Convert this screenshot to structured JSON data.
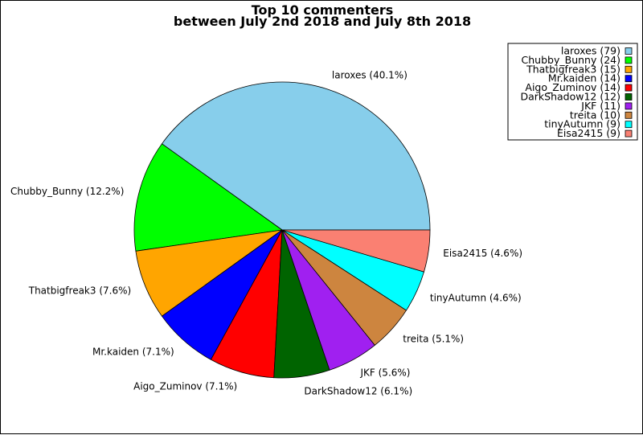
{
  "chart_data": {
    "type": "pie",
    "title": "Top 10 commenters",
    "subtitle": "between July 2nd 2018 and July 8th 2018",
    "legend_position": "top-right",
    "slices": [
      {
        "name": "laroxes",
        "value": 79,
        "label": "laroxes (40.1%)",
        "legend": "laroxes (79)",
        "color": "#87CEEB"
      },
      {
        "name": "Chubby_Bunny",
        "value": 24,
        "label": "Chubby_Bunny (12.2%)",
        "legend": "Chubby_Bunny (24)",
        "color": "#00FF00"
      },
      {
        "name": "Thatbigfreak3",
        "value": 15,
        "label": "Thatbigfreak3 (7.6%)",
        "legend": "Thatbigfreak3 (15)",
        "color": "#FFA500"
      },
      {
        "name": "Mr.kaiden",
        "value": 14,
        "label": "Mr.kaiden (7.1%)",
        "legend": "Mr.kaiden (14)",
        "color": "#0000FF"
      },
      {
        "name": "Aigo_Zuminov",
        "value": 14,
        "label": "Aigo_Zuminov (7.1%)",
        "legend": "Aigo_Zuminov (14)",
        "color": "#FF0000"
      },
      {
        "name": "DarkShadow12",
        "value": 12,
        "label": "DarkShadow12 (6.1%)",
        "legend": "DarkShadow12 (12)",
        "color": "#006400"
      },
      {
        "name": "JKF",
        "value": 11,
        "label": "JKF (5.6%)",
        "legend": "JKF (11)",
        "color": "#A020F0"
      },
      {
        "name": "treita",
        "value": 10,
        "label": "treita (5.1%)",
        "legend": "treita (10)",
        "color": "#CD853F"
      },
      {
        "name": "tinyAutumn",
        "value": 9,
        "label": "tinyAutumn (4.6%)",
        "legend": "tinyAutumn (9)",
        "color": "#00FFFF"
      },
      {
        "name": "Eisa2415",
        "value": 9,
        "label": "Eisa2415 (4.6%)",
        "legend": "Eisa2415 (9)",
        "color": "#FA8072"
      }
    ]
  }
}
